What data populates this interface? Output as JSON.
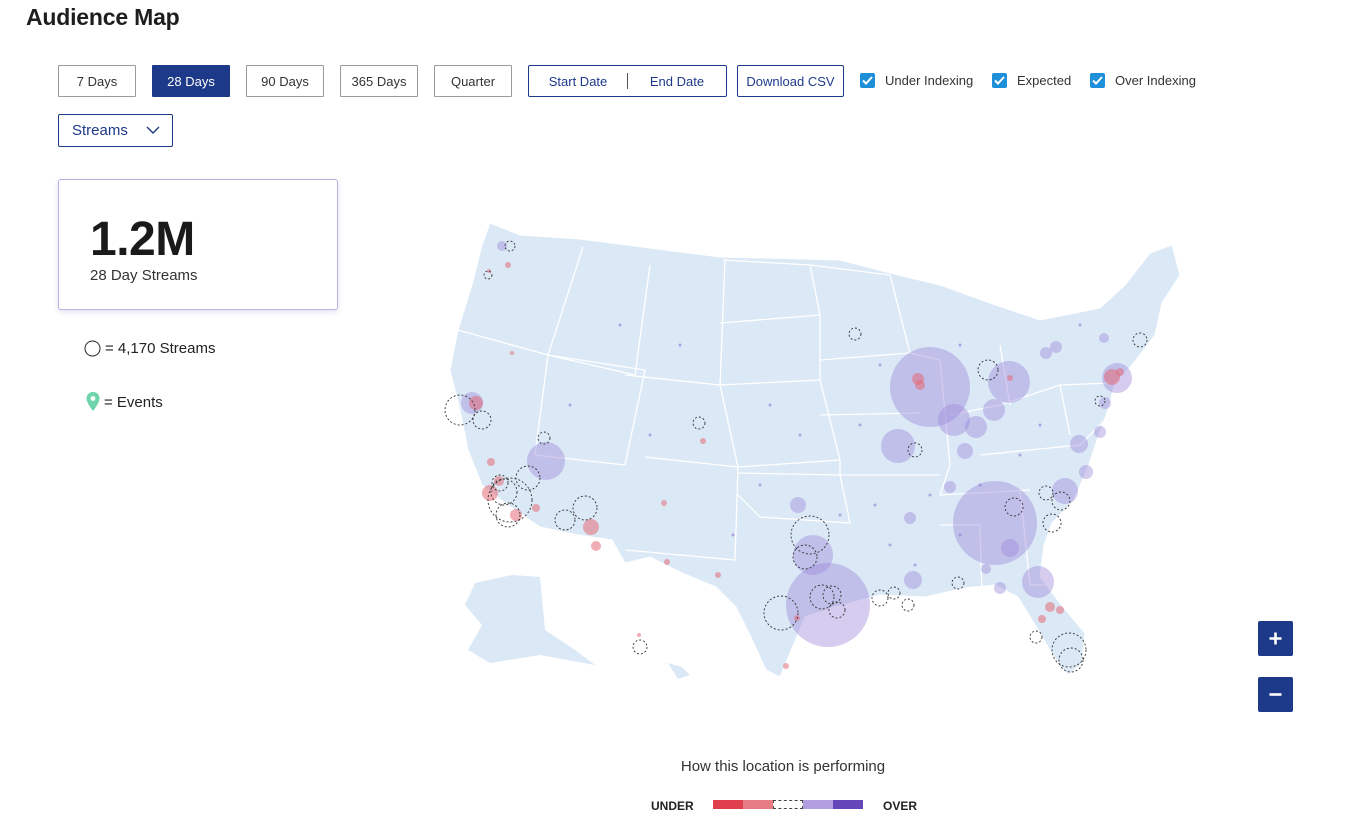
{
  "page": {
    "title": "Audience Map"
  },
  "range_buttons": [
    {
      "label": "7 Days",
      "active": false
    },
    {
      "label": "28 Days",
      "active": true
    },
    {
      "label": "90 Days",
      "active": false
    },
    {
      "label": "365 Days",
      "active": false
    },
    {
      "label": "Quarter",
      "active": false
    }
  ],
  "date_range": {
    "start_label": "Start Date",
    "end_label": "End Date"
  },
  "download": {
    "label": "Download CSV"
  },
  "filters": [
    {
      "label": "Under Indexing",
      "checked": true
    },
    {
      "label": "Expected",
      "checked": true
    },
    {
      "label": "Over Indexing",
      "checked": true
    }
  ],
  "metric_select": {
    "value": "Streams"
  },
  "stat": {
    "value": "1.2M",
    "label": "28 Day Streams"
  },
  "legend": {
    "circle_text": "= 4,170 Streams",
    "pin_text": "= Events"
  },
  "performance": {
    "title": "How this location is performing",
    "under_label": "UNDER",
    "over_label": "OVER"
  },
  "colors": {
    "primary": "#1d3a8a",
    "checkbox": "#1e8fd9",
    "land": "#dbe8f6",
    "under_strong": "#e0404e",
    "under_light": "#e87c84",
    "over_light": "#b19ee0",
    "over_strong": "#6446b8",
    "event_pin": "#6fd4a9"
  },
  "icons": {
    "dropdown": "chevron-down-icon",
    "check": "checkmark-icon",
    "zoom_in": "plus-icon",
    "zoom_out": "minus-icon",
    "pin": "map-pin-icon"
  }
}
